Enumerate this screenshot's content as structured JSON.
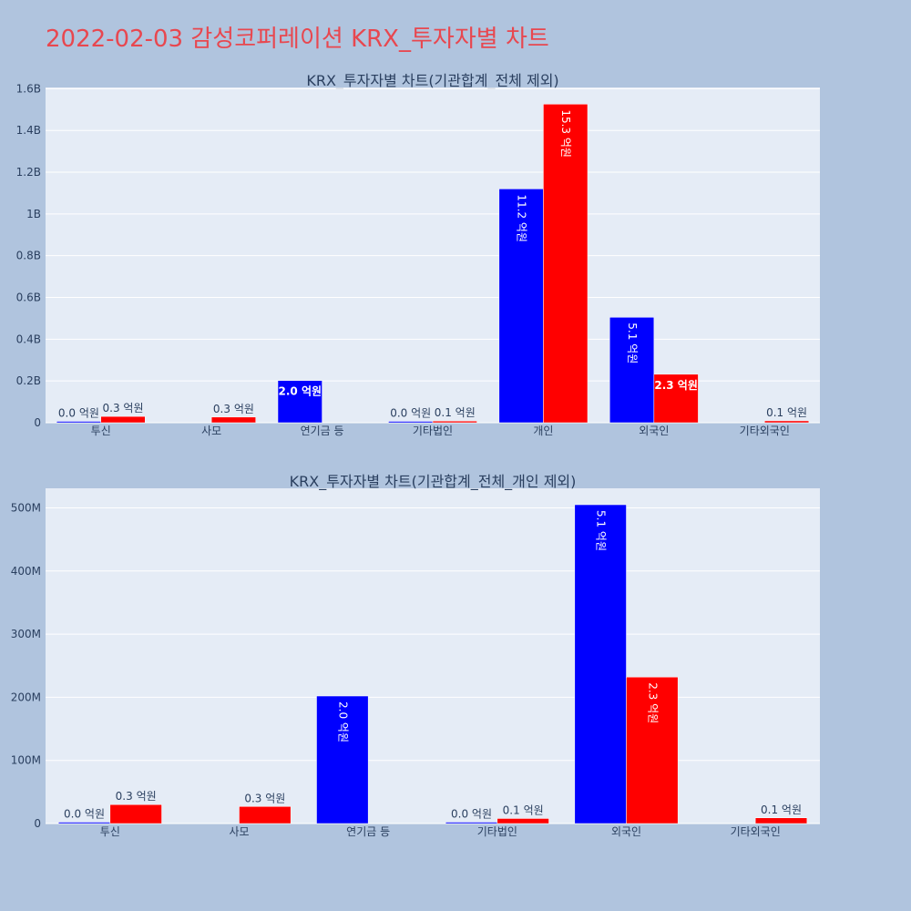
{
  "page": {
    "title": "2022-02-03 감성코퍼레이션 KRX_투자자별 차트"
  },
  "colors": {
    "buy": "#0000ff",
    "sell": "#ff0000",
    "plot_bg": "#e5ecf6",
    "page_bg": "#b0c4de",
    "title": "#e8474f"
  },
  "chart_data": [
    {
      "type": "bar",
      "title": "KRX_투자자별 차트(기관합계_전체 제외)",
      "categories": [
        "투신",
        "사모",
        "연기금 등",
        "기타법인",
        "개인",
        "외국인",
        "기타외국인"
      ],
      "series": [
        {
          "color": "#0000ff",
          "values": [
            1000000,
            0,
            202000000,
            1500000,
            1120000000,
            505000000,
            0
          ],
          "labels": [
            "0.0 억원",
            "",
            "2.0 억원",
            "0.0 억원",
            "11.2 억원",
            "5.1 억원",
            ""
          ]
        },
        {
          "color": "#ff0000",
          "values": [
            30000000,
            27000000,
            0,
            8000000,
            1526000000,
            232000000,
            9000000
          ],
          "labels": [
            "0.3 억원",
            "0.3 억원",
            "",
            "0.1 억원",
            "15.3 억원",
            "2.3 억원",
            "0.1 억원"
          ]
        }
      ],
      "yticks": [
        0,
        200000000,
        400000000,
        600000000,
        800000000,
        1000000000,
        1200000000,
        1400000000,
        1600000000
      ],
      "yticklabels": [
        "0",
        "0.2B",
        "0.4B",
        "0.6B",
        "0.8B",
        "1B",
        "1.2B",
        "1.4B",
        "1.6B"
      ],
      "ylim": [
        0,
        1606000000
      ],
      "grid": true
    },
    {
      "type": "bar",
      "title": "KRX_투자자별 차트(기관합계_전체_개인 제외)",
      "categories": [
        "투신",
        "사모",
        "연기금 등",
        "기타법인",
        "외국인",
        "기타외국인"
      ],
      "series": [
        {
          "color": "#0000ff",
          "values": [
            1000000,
            0,
            202000000,
            1500000,
            505000000,
            0
          ],
          "labels": [
            "0.0 억원",
            "",
            "2.0 억원",
            "0.0 억원",
            "5.1 억원",
            ""
          ]
        },
        {
          "color": "#ff0000",
          "values": [
            30000000,
            27000000,
            0,
            8000000,
            232000000,
            9000000
          ],
          "labels": [
            "0.3 억원",
            "0.3 억원",
            "",
            "0.1 억원",
            "2.3 억원",
            "0.1 억원"
          ]
        }
      ],
      "yticks": [
        0,
        100000000,
        200000000,
        300000000,
        400000000,
        500000000
      ],
      "yticklabels": [
        "0",
        "100M",
        "200M",
        "300M",
        "400M",
        "500M"
      ],
      "ylim": [
        0,
        531000000
      ],
      "grid": true
    }
  ]
}
